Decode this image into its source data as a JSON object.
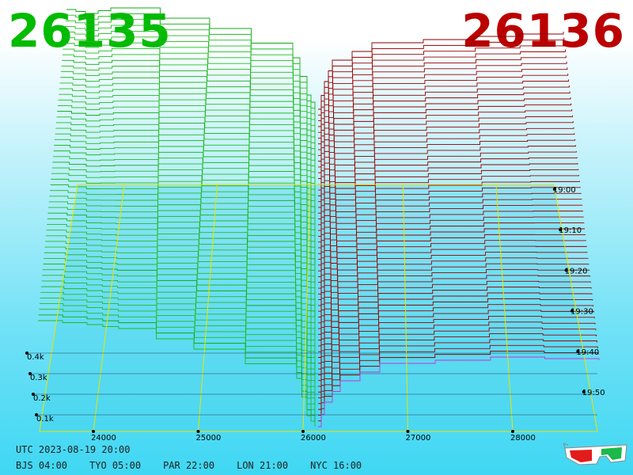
{
  "header": {
    "bid_price": "26135",
    "ask_price": "26136",
    "bid_color": "#00bb00",
    "ask_color": "#bb0000"
  },
  "footer": {
    "utc": "UTC 2023-08-19 20:00",
    "zones": [
      "BJS 04:00",
      "TYO 05:00",
      "PAR 22:00",
      "LON 21:00",
      "NYC 16:00"
    ],
    "glasses_icon": "3d-glasses-icon"
  },
  "chart_data": {
    "type": "area",
    "x_ticks": [
      "24000",
      "25000",
      "26000",
      "27000",
      "28000"
    ],
    "x_tick_values": [
      24000,
      25000,
      26000,
      27000,
      28000
    ],
    "time_ticks": [
      "19:00",
      "19:10",
      "19:20",
      "19:30",
      "19:40",
      "19:50"
    ],
    "depth_ticks": [
      "0.1k",
      "0.2k",
      "0.3k",
      "0.4k"
    ],
    "depth_tick_values": [
      100,
      200,
      300,
      400
    ],
    "series": [
      {
        "side": "bid",
        "color": "#00bb00"
      },
      {
        "side": "ask",
        "color": "#990000"
      }
    ],
    "grid": true
  }
}
